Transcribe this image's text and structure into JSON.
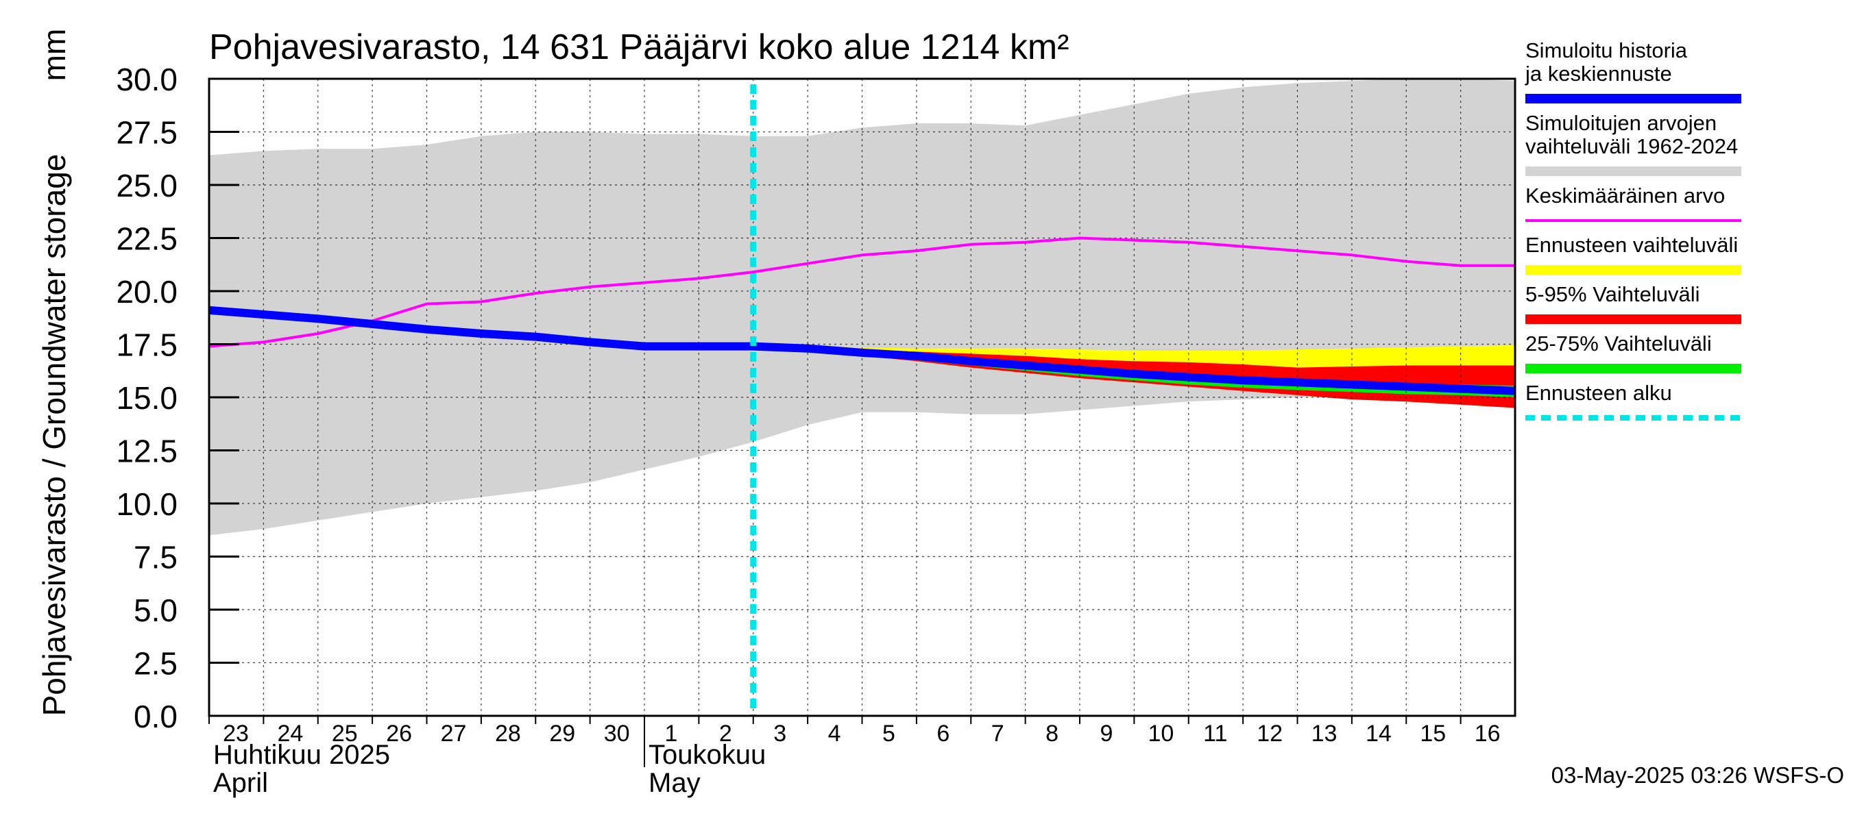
{
  "chart_data": {
    "type": "area",
    "title": "Pohjavesivarasto, 14 631 Pääjärvi koko alue 1214 km²",
    "ylabel": "Pohjavesivarasto / Groundwater storage",
    "yunit": "mm",
    "ylim": [
      0,
      30
    ],
    "yticks": [
      "0.0",
      "2.5",
      "5.0",
      "7.5",
      "10.0",
      "12.5",
      "15.0",
      "17.5",
      "20.0",
      "22.5",
      "25.0",
      "27.5",
      "30.0"
    ],
    "grid": true,
    "x_days": [
      "23",
      "24",
      "25",
      "26",
      "27",
      "28",
      "29",
      "30",
      "1",
      "2",
      "3",
      "4",
      "5",
      "6",
      "7",
      "8",
      "9",
      "10",
      "11",
      "12",
      "13",
      "14",
      "15",
      "16"
    ],
    "x_range_days": [
      0,
      24
    ],
    "months": [
      {
        "fi": "Huhtikuu  2025",
        "en": "April",
        "start": 0
      },
      {
        "fi": "Toukokuu",
        "en": "May",
        "start": 8
      }
    ],
    "forecast_start": 10,
    "series": [
      {
        "name": "Simuloitujen arvojen vaihteluväli 1962-2024",
        "kind": "band",
        "color": "#d3d3d3",
        "x": [
          0,
          1,
          2,
          3,
          4,
          5,
          6,
          7,
          8,
          9,
          10,
          11,
          12,
          13,
          14,
          15,
          16,
          17,
          18,
          19,
          20,
          21,
          22,
          23,
          24
        ],
        "upper": [
          26.4,
          26.6,
          26.7,
          26.7,
          26.9,
          27.3,
          27.5,
          27.5,
          27.4,
          27.4,
          27.3,
          27.3,
          27.7,
          27.9,
          27.9,
          27.8,
          28.3,
          28.8,
          29.3,
          29.6,
          29.8,
          29.9,
          30.0,
          30.0,
          29.9
        ],
        "lower": [
          8.5,
          8.8,
          9.2,
          9.6,
          10.0,
          10.3,
          10.6,
          11.0,
          11.6,
          12.2,
          12.9,
          13.7,
          14.3,
          14.3,
          14.2,
          14.2,
          14.4,
          14.6,
          14.8,
          14.9,
          15.0,
          15.1,
          15.1,
          15.2,
          15.2
        ]
      },
      {
        "name": "Ennusteen vaihteluväli",
        "kind": "band",
        "color": "#ffff00",
        "x": [
          10,
          11,
          12,
          13,
          14,
          15,
          16,
          17,
          18,
          19,
          20,
          21,
          22,
          23,
          24
        ],
        "upper": [
          17.45,
          17.4,
          17.35,
          17.3,
          17.3,
          17.3,
          17.25,
          17.2,
          17.2,
          17.2,
          17.25,
          17.3,
          17.35,
          17.4,
          17.45
        ],
        "lower": [
          17.4,
          17.2,
          16.95,
          16.7,
          16.4,
          16.15,
          15.9,
          15.7,
          15.5,
          15.3,
          15.1,
          14.9,
          14.8,
          14.65,
          14.5
        ]
      },
      {
        "name": "5-95% Vaihteluväli",
        "kind": "band",
        "color": "#ff0000",
        "x": [
          10,
          11,
          12,
          13,
          14,
          15,
          16,
          17,
          18,
          19,
          20,
          21,
          22,
          23,
          24
        ],
        "upper": [
          17.4,
          17.35,
          17.25,
          17.15,
          17.05,
          16.95,
          16.8,
          16.7,
          16.65,
          16.55,
          16.4,
          16.45,
          16.5,
          16.5,
          16.5
        ],
        "lower": [
          17.35,
          17.2,
          16.95,
          16.7,
          16.4,
          16.15,
          15.9,
          15.7,
          15.5,
          15.3,
          15.1,
          14.9,
          14.8,
          14.65,
          14.5
        ]
      },
      {
        "name": "25-75% Vaihteluväli",
        "kind": "band",
        "color": "#00ee00",
        "x": [
          10,
          11,
          12,
          13,
          14,
          15,
          16,
          17,
          18,
          19,
          20,
          21,
          22,
          23,
          24
        ],
        "upper": [
          17.35,
          17.3,
          17.15,
          16.95,
          16.75,
          16.55,
          16.35,
          16.2,
          16.05,
          15.95,
          15.85,
          15.75,
          15.65,
          15.6,
          15.55
        ],
        "lower": [
          17.3,
          17.2,
          17.0,
          16.75,
          16.5,
          16.25,
          16.0,
          15.8,
          15.6,
          15.45,
          15.35,
          15.25,
          15.15,
          15.1,
          15.0
        ]
      },
      {
        "name": "Keskimääräinen arvo",
        "kind": "line",
        "color": "#ff00ff",
        "width": 4,
        "x": [
          0,
          1,
          2,
          3,
          4,
          5,
          6,
          7,
          8,
          9,
          10,
          11,
          12,
          13,
          14,
          15,
          16,
          17,
          18,
          19,
          20,
          21,
          22,
          23,
          24
        ],
        "values": [
          17.4,
          17.6,
          18.0,
          18.6,
          19.4,
          19.5,
          19.9,
          20.2,
          20.4,
          20.6,
          20.9,
          21.3,
          21.7,
          21.9,
          22.2,
          22.3,
          22.5,
          22.4,
          22.3,
          22.1,
          21.9,
          21.7,
          21.4,
          21.2,
          21.2
        ]
      },
      {
        "name": "Simuloitu historia ja keskiennuste",
        "kind": "line",
        "color": "#0000ff",
        "width": 12,
        "x": [
          0,
          1,
          2,
          3,
          4,
          5,
          6,
          7,
          8,
          9,
          10,
          11,
          12,
          13,
          14,
          15,
          16,
          17,
          18,
          19,
          20,
          21,
          22,
          23,
          24
        ],
        "values": [
          19.1,
          18.9,
          18.7,
          18.45,
          18.2,
          18.0,
          17.85,
          17.6,
          17.4,
          17.4,
          17.4,
          17.3,
          17.1,
          16.95,
          16.7,
          16.5,
          16.3,
          16.1,
          15.95,
          15.8,
          15.7,
          15.6,
          15.5,
          15.4,
          15.3
        ]
      }
    ],
    "legend": {
      "placement": "right",
      "entries": [
        {
          "label": "Simuloitu historia ja keskiennuste",
          "style": "thick",
          "color": "#0000ff"
        },
        {
          "label": "Simuloitujen arvojen vaihteluväli 1962-2024",
          "style": "thick",
          "color": "#d3d3d3"
        },
        {
          "label": "Keskimääräinen arvo",
          "style": "thin",
          "color": "#ff00ff"
        },
        {
          "label": "Ennusteen vaihteluväli",
          "style": "thick",
          "color": "#ffff00"
        },
        {
          "label": "5-95% Vaihteluväli",
          "style": "thick",
          "color": "#ff0000"
        },
        {
          "label": "25-75% Vaihteluväli",
          "style": "thick",
          "color": "#00ee00"
        },
        {
          "label": "Ennusteen alku",
          "style": "dashed",
          "color": "#00e5e5"
        }
      ]
    },
    "forecast_line_color": "#00e5e5",
    "timestamp": "03-May-2025 03:26 WSFS-O"
  }
}
